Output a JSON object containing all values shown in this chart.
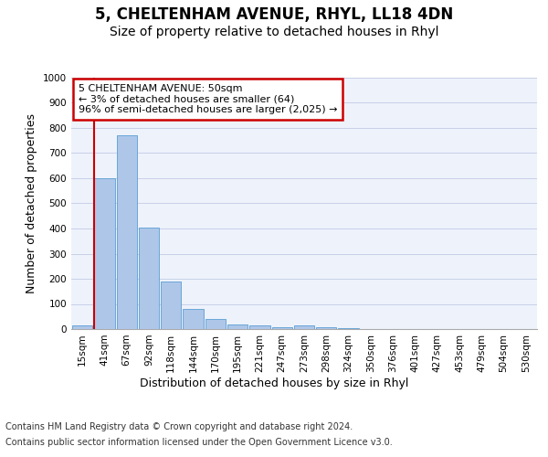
{
  "title": "5, CHELTENHAM AVENUE, RHYL, LL18 4DN",
  "subtitle": "Size of property relative to detached houses in Rhyl",
  "xlabel": "Distribution of detached houses by size in Rhyl",
  "ylabel": "Number of detached properties",
  "categories": [
    "15sqm",
    "41sqm",
    "67sqm",
    "92sqm",
    "118sqm",
    "144sqm",
    "170sqm",
    "195sqm",
    "221sqm",
    "247sqm",
    "273sqm",
    "298sqm",
    "324sqm",
    "350sqm",
    "376sqm",
    "401sqm",
    "427sqm",
    "453sqm",
    "479sqm",
    "504sqm",
    "530sqm"
  ],
  "values": [
    15,
    600,
    770,
    405,
    190,
    80,
    40,
    20,
    15,
    8,
    13,
    8,
    2,
    0,
    0,
    0,
    0,
    0,
    0,
    0,
    0
  ],
  "bar_color": "#aec6e8",
  "bar_edge_color": "#5a9fd4",
  "vline_x_index": 1,
  "vline_color": "#cc0000",
  "ylim": [
    0,
    1000
  ],
  "yticks": [
    0,
    100,
    200,
    300,
    400,
    500,
    600,
    700,
    800,
    900,
    1000
  ],
  "annotation_text": "5 CHELTENHAM AVENUE: 50sqm\n← 3% of detached houses are smaller (64)\n96% of semi-detached houses are larger (2,025) →",
  "annotation_box_color": "#cc0000",
  "footer_line1": "Contains HM Land Registry data © Crown copyright and database right 2024.",
  "footer_line2": "Contains public sector information licensed under the Open Government Licence v3.0.",
  "bg_color": "#eef2fb",
  "grid_color": "#c8d0e8",
  "title_fontsize": 12,
  "subtitle_fontsize": 10,
  "ylabel_fontsize": 9,
  "xlabel_fontsize": 9,
  "tick_fontsize": 7.5,
  "footer_fontsize": 7,
  "annotation_fontsize": 8
}
